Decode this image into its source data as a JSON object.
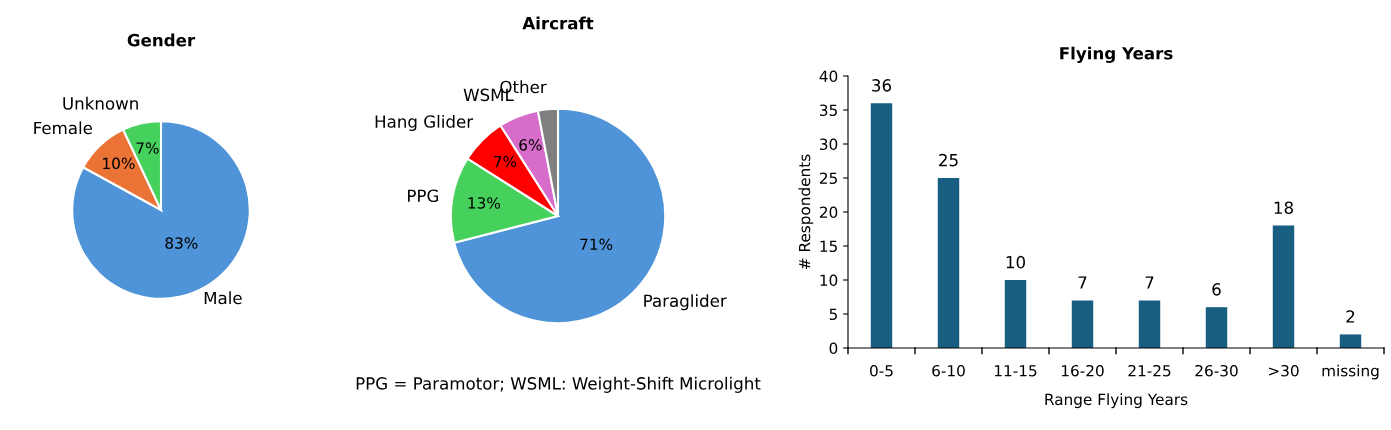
{
  "chart_data": [
    {
      "type": "pie",
      "title": "Gender",
      "categories": [
        "Male",
        "Female",
        "Unknown"
      ],
      "values": [
        83,
        10,
        7
      ],
      "colors": [
        "#4f94d8",
        "#eb7336",
        "#45d15c"
      ],
      "value_labels": [
        "83%",
        "10%",
        "7%"
      ]
    },
    {
      "type": "pie",
      "title": "Aircraft",
      "categories": [
        "Paraglider",
        "PPG",
        "Hang Glider",
        "WSML",
        "Other"
      ],
      "values": [
        71,
        13,
        7,
        6,
        3
      ],
      "colors": [
        "#4f94d8",
        "#45d15c",
        "#ff0000",
        "#d86ccb",
        "#7f7f7f"
      ],
      "value_labels": [
        "71%",
        "13%",
        "7%",
        "6%",
        null
      ],
      "annotations": [
        "PPG = Paramotor; WSML: Weight-Shift Microlight"
      ]
    },
    {
      "type": "bar",
      "title": "Flying Years",
      "xlabel": "Range Flying Years",
      "ylabel": "# Respondents",
      "categories": [
        "0-5",
        "6-10",
        "11-15",
        "16-20",
        "21-25",
        "26-30",
        ">30",
        "missing"
      ],
      "values": [
        36,
        25,
        10,
        7,
        7,
        6,
        18,
        2
      ],
      "color": "#175e80",
      "ylim": [
        0,
        40
      ],
      "yticks": [
        0,
        5,
        10,
        15,
        20,
        25,
        30,
        35,
        40
      ],
      "data_labels": true
    }
  ]
}
